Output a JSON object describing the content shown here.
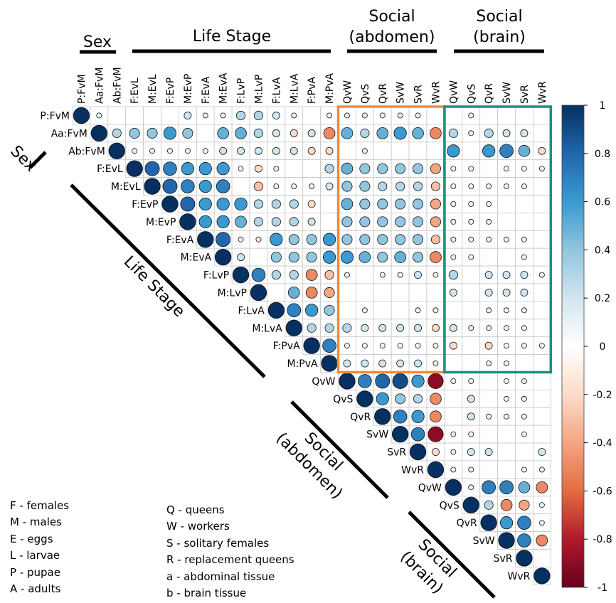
{
  "chart_data": {
    "type": "heatmap",
    "title": "",
    "row_labels": [
      "P:FvM",
      "Aa:FvM",
      "Ab:FvM",
      "F:EvL",
      "M:EvL",
      "F:EvP",
      "M:EvP",
      "F:EvA",
      "M:EvA",
      "F:LvP",
      "M:LvP",
      "F:LvA",
      "M:LvA",
      "F:PvA",
      "M:PvA",
      "QvW",
      "QvS",
      "QvR",
      "SvW",
      "SvR",
      "WvR",
      "QvW",
      "QvS",
      "QvR",
      "SvW",
      "SvR",
      "WvR"
    ],
    "column_labels": [
      "P:FvM",
      "Aa:FvM",
      "Ab:FvM",
      "F:EvL",
      "M:EvL",
      "F:EvP",
      "M:EvP",
      "F:EvA",
      "M:EvA",
      "F:LvP",
      "M:LvP",
      "F:LvA",
      "M:LvA",
      "F:PvA",
      "M:PvA",
      "QvW",
      "QvS",
      "QvR",
      "SvW",
      "SvR",
      "WvR",
      "QvW",
      "QvS",
      "QvR",
      "SvW",
      "SvR",
      "WvR"
    ],
    "group_labels": {
      "sex_top": "Sex",
      "life_stage_top": "Life Stage",
      "social_abdomen_top": [
        "Social",
        "(abdomen)"
      ],
      "social_brain_top": [
        "Social",
        "(brain)"
      ],
      "sex_diag": "Sex",
      "life_stage_diag": "Life Stage",
      "social_abdomen_diag": [
        "Social",
        "(abdomen)"
      ],
      "social_brain_diag": [
        "Social",
        "(brain)"
      ]
    },
    "colorbar": {
      "min": -1,
      "max": 1,
      "ticks": [
        "1",
        "0.8",
        "0.6",
        "0.4",
        "0.2",
        "0",
        "-0.2",
        "-0.4",
        "-0.6",
        "-0.8",
        "-1"
      ]
    },
    "highlight_boxes": [
      {
        "rows": [
          0,
          14
        ],
        "cols": [
          15,
          20
        ],
        "color": "#f08a3c"
      },
      {
        "rows": [
          0,
          14
        ],
        "cols": [
          21,
          26
        ],
        "color": "#1f8f80"
      }
    ],
    "upper_triangle": [
      [
        1,
        0.1,
        0,
        0,
        0,
        0,
        0.2,
        0.1,
        0.1,
        0.3,
        0.3,
        0.2,
        0.1,
        0,
        0.1,
        0.1,
        0.1,
        0.1,
        0.1,
        0.1,
        0,
        0,
        0.1,
        0,
        0,
        0,
        0
      ],
      [
        0,
        1,
        0.3,
        0.4,
        0.4,
        0.6,
        0.4,
        0,
        0.5,
        0.5,
        0.3,
        0.2,
        -0.2,
        0.2,
        -0.5,
        0.5,
        0.3,
        0.5,
        0.6,
        0.5,
        -0.5,
        0.3,
        0.1,
        0.3,
        0.2,
        0.2,
        0
      ],
      [
        0,
        0,
        1,
        0.1,
        0.1,
        0.1,
        0.1,
        -0.1,
        0.2,
        0.2,
        0.2,
        0.2,
        0.2,
        -0.2,
        -0.2,
        0,
        0.1,
        0,
        0,
        0,
        0,
        0.6,
        0,
        0.6,
        0.7,
        0.5,
        -0.2
      ],
      [
        0,
        0,
        0,
        1,
        0.8,
        0.7,
        0.6,
        0.6,
        0.6,
        0.1,
        -0.2,
        0.1,
        0,
        0,
        0.3,
        0.5,
        0.4,
        0.4,
        0.4,
        0.4,
        -0.4,
        0.1,
        0.1,
        0,
        -0.1,
        -0.1,
        0.1
      ],
      [
        0,
        0,
        0,
        0,
        1,
        0.8,
        0.7,
        0.6,
        0.7,
        0,
        -0.3,
        0.1,
        0.1,
        0.1,
        0.2,
        0.4,
        0.4,
        0.3,
        0.3,
        0.3,
        -0.3,
        0.1,
        0.1,
        0.1,
        0.1,
        -0.1,
        0
      ],
      [
        0,
        0,
        0,
        0,
        0,
        1,
        0.8,
        0.6,
        0.6,
        0.6,
        0.3,
        0.3,
        0.3,
        -0.2,
        0,
        0.5,
        0.4,
        0.4,
        0.4,
        0.4,
        -0.4,
        0.1,
        0.1,
        0.1,
        0,
        0,
        0
      ],
      [
        0,
        0,
        0,
        0,
        0,
        0,
        1,
        0.6,
        0.6,
        0.5,
        0.3,
        0.3,
        0.3,
        0.2,
        0,
        0.4,
        0.4,
        0.4,
        0.4,
        0.4,
        -0.4,
        0.1,
        0.1,
        0.1,
        0,
        0,
        0
      ],
      [
        0,
        0,
        0,
        0,
        0,
        0,
        0,
        1,
        0.8,
        0.1,
        -0.1,
        0.6,
        0.4,
        0.4,
        0.6,
        0.4,
        0.4,
        0.4,
        0.4,
        0.4,
        -0.3,
        0.1,
        0.1,
        0.1,
        -0.1,
        -0.1,
        0
      ],
      [
        0,
        0,
        0,
        0,
        0,
        0,
        0,
        0,
        1,
        0.2,
        0,
        0.4,
        0.4,
        0.4,
        0.6,
        0.6,
        0.5,
        0.4,
        0.5,
        0.4,
        -0.5,
        0.1,
        0.1,
        0,
        0,
        -0.1,
        0
      ],
      [
        0,
        0,
        0,
        0,
        0,
        0,
        0,
        0,
        0,
        1,
        0.7,
        0.3,
        0.3,
        -0.5,
        -0.3,
        0.1,
        0,
        0.1,
        0.1,
        0.2,
        -0.1,
        0.3,
        0,
        0.2,
        0.2,
        0.2,
        0.1
      ],
      [
        0,
        0,
        0,
        0,
        0,
        0,
        0,
        0,
        0,
        0,
        1,
        0,
        0.5,
        -0.5,
        -0.4,
        0,
        0,
        0,
        0,
        0,
        0,
        0.2,
        0,
        0.2,
        0.2,
        0.2,
        0
      ],
      [
        0,
        0,
        0,
        0,
        0,
        0,
        0,
        0,
        0,
        0,
        0,
        1,
        0.7,
        0.6,
        0.4,
        0,
        0.1,
        0,
        0,
        -0.1,
        -0.1,
        0,
        0,
        0.1,
        0.1,
        0.1,
        0
      ],
      [
        0,
        0,
        0,
        0,
        0,
        0,
        0,
        0,
        0,
        0,
        0,
        0,
        1,
        0.3,
        0.3,
        0.3,
        0.2,
        0.2,
        0.2,
        0.2,
        -0.2,
        0.2,
        0.1,
        0.1,
        0.1,
        0.1,
        0
      ],
      [
        0,
        0,
        0,
        0,
        0,
        0,
        0,
        0,
        0,
        0,
        0,
        0,
        0,
        1,
        0.7,
        0.1,
        0.1,
        0.1,
        0.1,
        0.1,
        -0.1,
        -0.2,
        0,
        -0.2,
        -0.1,
        -0.1,
        0.1
      ],
      [
        0,
        0,
        0,
        0,
        0,
        0,
        0,
        0,
        0,
        0,
        0,
        0,
        0,
        0,
        1,
        0.2,
        0.2,
        0.2,
        0.2,
        0.2,
        -0.1,
        0,
        0,
        0.1,
        0.1,
        0,
        0
      ],
      [
        0,
        0,
        0,
        0,
        0,
        0,
        0,
        0,
        0,
        0,
        0,
        0,
        0,
        0,
        0,
        1,
        0.7,
        0.8,
        0.9,
        0.6,
        -0.9,
        0.1,
        0.1,
        0,
        0.1,
        0.1,
        0
      ],
      [
        0,
        0,
        0,
        0,
        0,
        0,
        0,
        0,
        0,
        0,
        0,
        0,
        0,
        0,
        0,
        0,
        1,
        0.6,
        0.4,
        0.3,
        -0.5,
        0,
        0.2,
        0,
        -0.1,
        -0.1,
        0
      ],
      [
        0,
        0,
        0,
        0,
        0,
        0,
        0,
        0,
        0,
        0,
        0,
        0,
        0,
        0,
        0,
        0,
        0,
        1,
        0.7,
        0.6,
        -0.5,
        0,
        0.2,
        0.1,
        0.1,
        0.1,
        0
      ],
      [
        0,
        0,
        0,
        0,
        0,
        0,
        0,
        0,
        0,
        0,
        0,
        0,
        0,
        0,
        0,
        0,
        0,
        0,
        1,
        0.7,
        -0.9,
        0.1,
        0.1,
        0,
        0,
        0.1,
        0
      ],
      [
        0,
        0,
        0,
        0,
        0,
        0,
        0,
        0,
        0,
        0,
        0,
        0,
        0,
        0,
        0,
        0,
        0,
        0,
        0,
        1,
        -0.2,
        0.1,
        0.2,
        0.2,
        0,
        0,
        0.2
      ],
      [
        0,
        0,
        0,
        0,
        0,
        0,
        0,
        0,
        0,
        0,
        0,
        0,
        0,
        0,
        0,
        0,
        0,
        0,
        0,
        0,
        1,
        0.1,
        -0.1,
        0,
        0,
        0.1,
        0.1
      ],
      [
        0,
        0,
        0,
        0,
        0,
        0,
        0,
        0,
        0,
        0,
        0,
        0,
        0,
        0,
        0,
        0,
        0,
        0,
        0,
        0,
        0,
        1,
        0.1,
        0.7,
        0.7,
        0.5,
        -0.5
      ],
      [
        0,
        0,
        0,
        0,
        0,
        0,
        0,
        0,
        0,
        0,
        0,
        0,
        0,
        0,
        0,
        0,
        0,
        0,
        0,
        0,
        0,
        0,
        1,
        0.3,
        -0.5,
        -0.4,
        0.1
      ],
      [
        0,
        0,
        0,
        0,
        0,
        0,
        0,
        0,
        0,
        0,
        0,
        0,
        0,
        0,
        0,
        0,
        0,
        0,
        0,
        0,
        0,
        0,
        0,
        1,
        0.6,
        0.7,
        0.1
      ],
      [
        0,
        0,
        0,
        0,
        0,
        0,
        0,
        0,
        0,
        0,
        0,
        0,
        0,
        0,
        0,
        0,
        0,
        0,
        0,
        0,
        0,
        0,
        0,
        0,
        1,
        0.7,
        -0.5
      ],
      [
        0,
        0,
        0,
        0,
        0,
        0,
        0,
        0,
        0,
        0,
        0,
        0,
        0,
        0,
        0,
        0,
        0,
        0,
        0,
        0,
        0,
        0,
        0,
        0,
        0,
        1,
        0
      ],
      [
        0,
        0,
        0,
        0,
        0,
        0,
        0,
        0,
        0,
        0,
        0,
        0,
        0,
        0,
        0,
        0,
        0,
        0,
        0,
        0,
        0,
        0,
        0,
        0,
        0,
        0,
        1
      ]
    ]
  },
  "legend_left": [
    "F - females",
    "M - males",
    "E - eggs",
    "L - larvae",
    "P - pupae",
    "A - adults"
  ],
  "legend_right": [
    "Q - queens",
    "W - workers",
    "S - solitary females",
    "R - replacement queens",
    "a - abdominal tissue",
    "b - brain tissue"
  ]
}
